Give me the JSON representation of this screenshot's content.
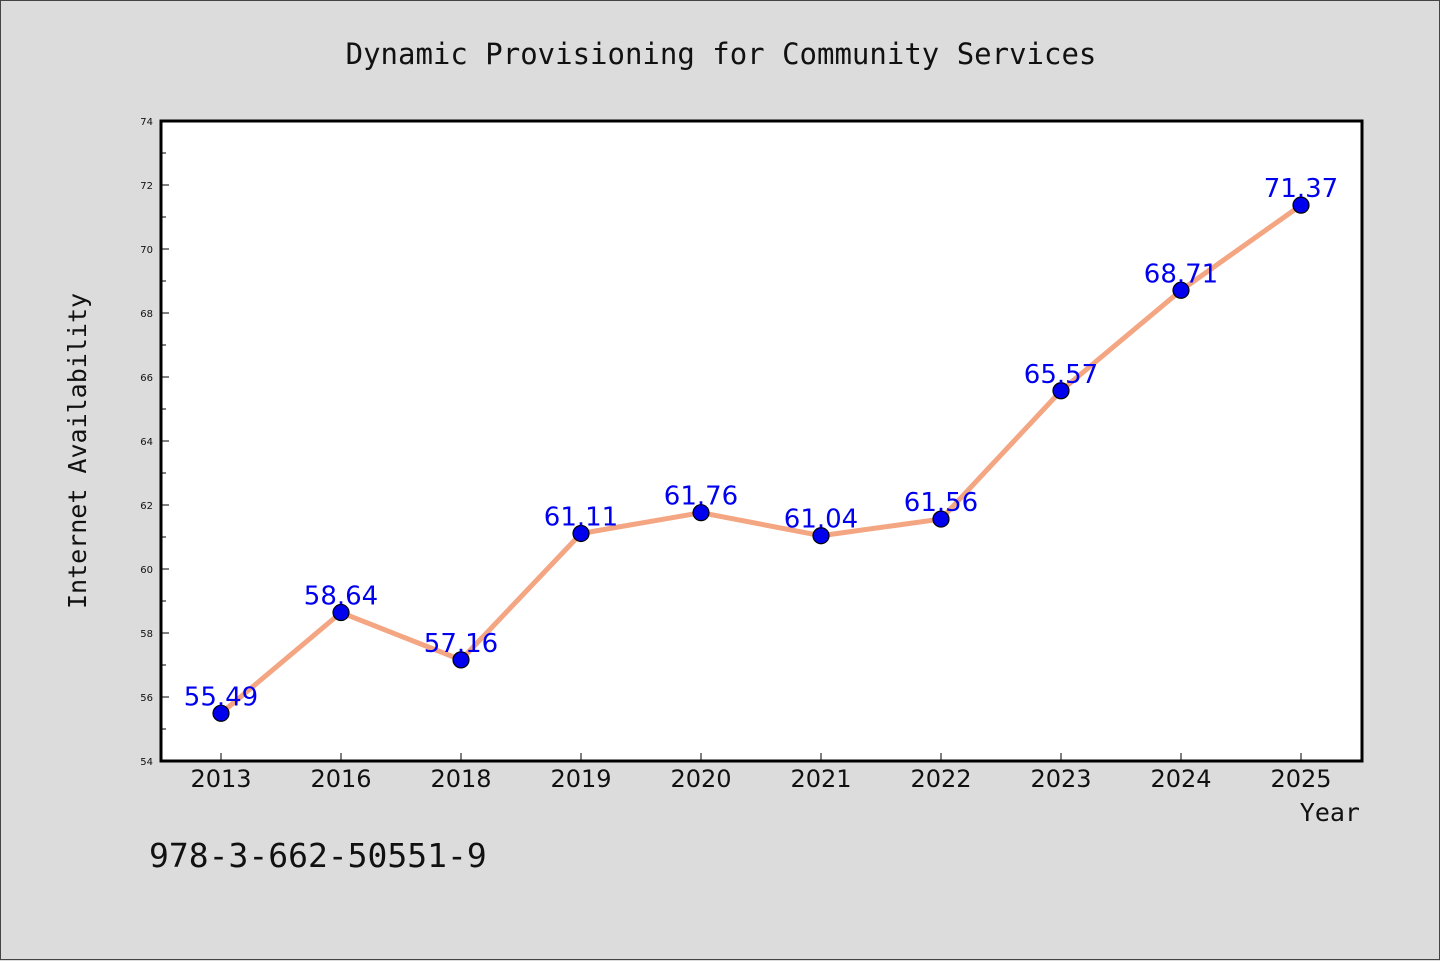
{
  "chart_data": {
    "type": "line",
    "title": "Dynamic Provisioning for Community Services",
    "xlabel": "Year",
    "ylabel": "Internet Availability",
    "categories": [
      "2013",
      "2016",
      "2018",
      "2019",
      "2020",
      "2021",
      "2022",
      "2023",
      "2024",
      "2025"
    ],
    "series": [
      {
        "values": [
          55.49,
          58.64,
          57.16,
          61.11,
          61.76,
          61.04,
          61.56,
          65.57,
          68.71,
          71.37
        ],
        "labels": [
          "55.49",
          "58.64",
          "57.16",
          "61.11",
          "61.76",
          "61.04",
          "61.56",
          "65.57",
          "68.71",
          "71.37"
        ],
        "line_color": "#f4a582",
        "marker_color": "#0000ee"
      }
    ],
    "ylim": [
      54,
      74
    ],
    "yticks": [
      "54",
      "56",
      "58",
      "60",
      "62",
      "64",
      "66",
      "68",
      "70",
      "72",
      "74"
    ],
    "grid": false,
    "legend": "none"
  },
  "footer": {
    "isbn": "978-3-662-50551-9"
  }
}
